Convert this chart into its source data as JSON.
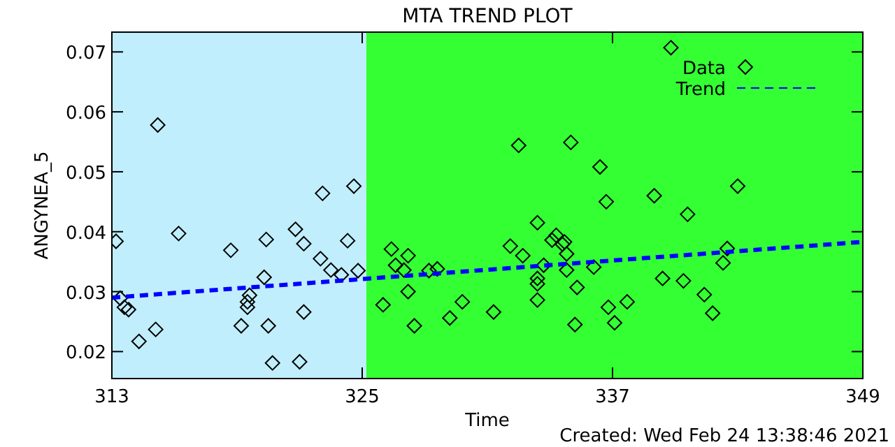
{
  "chart_data": {
    "type": "scatter",
    "title": "MTA TREND PLOT",
    "xlabel": "Time",
    "ylabel": "ANGYNEA_5",
    "annotations": [
      "Created: Wed Feb 24 13:38:46 2021"
    ],
    "xlim": [
      313,
      349
    ],
    "xticks": [
      313,
      325,
      337,
      349
    ],
    "ylim": [
      0.0155,
      0.0733
    ],
    "yticks": [
      0.02,
      0.03,
      0.04,
      0.05,
      0.06,
      0.07
    ],
    "grid": false,
    "legend": "top right",
    "marker": "diamond",
    "bands": [
      {
        "axis": "x",
        "from": 313,
        "to": 325.2,
        "color": "#c0eefc"
      },
      {
        "axis": "x",
        "from": 325.2,
        "to": 349,
        "color": "#33ff33"
      }
    ],
    "series": [
      {
        "name": "Data",
        "color": "#000000",
        "x": [
          313.2,
          313.4,
          313.6,
          313.8,
          314.3,
          315.1,
          315.2,
          316.2,
          318.7,
          319.2,
          319.5,
          319.5,
          319.6,
          320.3,
          320.4,
          320.5,
          320.7,
          321.8,
          322.0,
          322.2,
          322.2,
          323.0,
          323.1,
          323.5,
          324.0,
          324.3,
          324.6,
          324.8,
          326.0,
          326.4,
          326.6,
          327.0,
          327.2,
          327.2,
          327.5,
          328.2,
          328.6,
          329.2,
          329.8,
          331.3,
          332.1,
          332.5,
          332.7,
          333.4,
          333.4,
          333.4,
          333.4,
          333.7,
          334.1,
          334.3,
          334.6,
          334.7,
          334.8,
          334.8,
          335.0,
          335.3,
          335.2,
          336.1,
          336.4,
          336.7,
          336.8,
          337.1,
          337.7,
          339.8,
          339.0,
          339.4,
          340.4,
          340.6,
          341.4,
          341.8,
          342.3,
          342.5,
          343.0
        ],
        "values": [
          0.0384,
          0.0289,
          0.0274,
          0.027,
          0.0217,
          0.0237,
          0.0578,
          0.0397,
          0.0369,
          0.0243,
          0.0274,
          0.0283,
          0.0294,
          0.0324,
          0.0387,
          0.0243,
          0.0181,
          0.0404,
          0.0183,
          0.038,
          0.0266,
          0.0355,
          0.0464,
          0.0336,
          0.0328,
          0.0385,
          0.0476,
          0.0335,
          0.0278,
          0.0371,
          0.0344,
          0.0336,
          0.036,
          0.03,
          0.0243,
          0.0335,
          0.0338,
          0.0256,
          0.0283,
          0.0266,
          0.0376,
          0.0544,
          0.036,
          0.0415,
          0.0322,
          0.0313,
          0.0286,
          0.0344,
          0.0386,
          0.0394,
          0.0379,
          0.0383,
          0.0363,
          0.0336,
          0.0549,
          0.0307,
          0.0245,
          0.0341,
          0.0508,
          0.045,
          0.0274,
          0.0248,
          0.0283,
          0.0707,
          0.046,
          0.0322,
          0.0318,
          0.0429,
          0.0295,
          0.0264,
          0.0348,
          0.0372,
          0.0476
        ]
      },
      {
        "name": "Trend",
        "type": "line",
        "color": "#0000ff",
        "line_style": "dashed",
        "marker": "none",
        "x": [
          313,
          349
        ],
        "values": [
          0.029,
          0.0383
        ]
      }
    ]
  }
}
